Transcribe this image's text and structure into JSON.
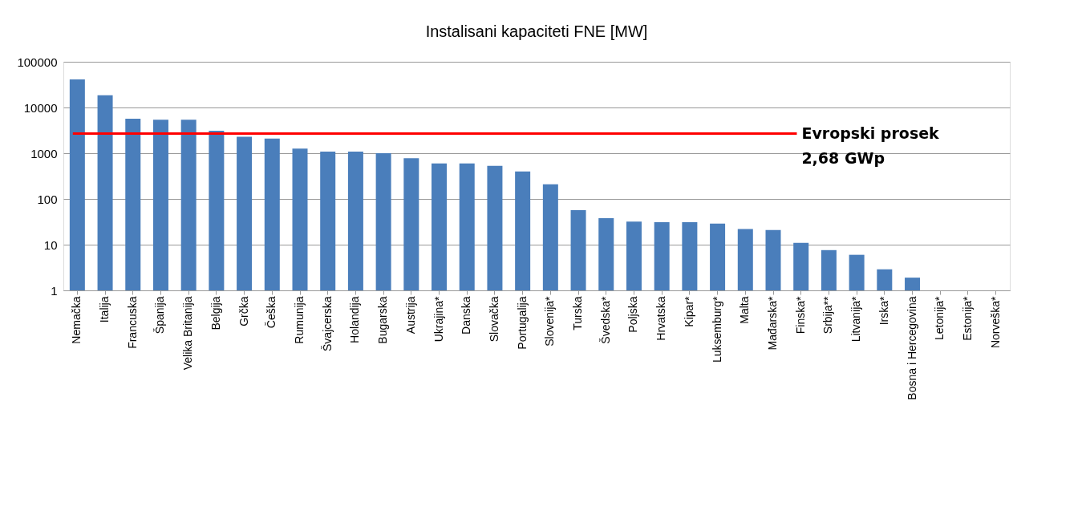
{
  "chart_data": {
    "type": "bar",
    "title": "Instalisani kapaciteti FNE [MW]",
    "categories": [
      "Nemačka",
      "Italija",
      "Francuska",
      "Španija",
      "Velika Britanija",
      "Belgija",
      "Grčka",
      "Češka",
      "Rumunija",
      "Švajcerska",
      "Holandija",
      "Bugarska",
      "Austrija",
      "Ukrajina*",
      "Danska",
      "Slovačka",
      "Portugalija",
      "Slovenija*",
      "Turska",
      "Švedska*",
      "Poljska",
      "Hrvatska",
      "Kipar*",
      "Luksemburg*",
      "Malta",
      "Mađarska*",
      "Finska*",
      "Srbija**",
      "Litvanija*",
      "Irska*",
      "Bosna i Hercegovina",
      "Letonija*",
      "Estonija*",
      "Norveška*"
    ],
    "values": [
      41000,
      18600,
      5700,
      5400,
      5400,
      3100,
      2300,
      2100,
      1260,
      1080,
      1080,
      1000,
      780,
      600,
      600,
      530,
      400,
      210,
      57,
      38,
      32,
      31,
      31,
      29,
      22,
      21,
      11,
      7.6,
      6,
      2.9,
      1.9,
      null,
      null,
      null
    ],
    "color": "#4a7ebb",
    "log": true,
    "ylim": [
      1,
      100000
    ],
    "yticks": [
      1,
      10,
      100,
      1000,
      10000,
      100000
    ],
    "grid": "y",
    "ref_lines": [
      {
        "axis": "y",
        "value": 2680,
        "label": "Evropski prosek\n2,68 GWp",
        "color": "#ff0000"
      }
    ]
  }
}
